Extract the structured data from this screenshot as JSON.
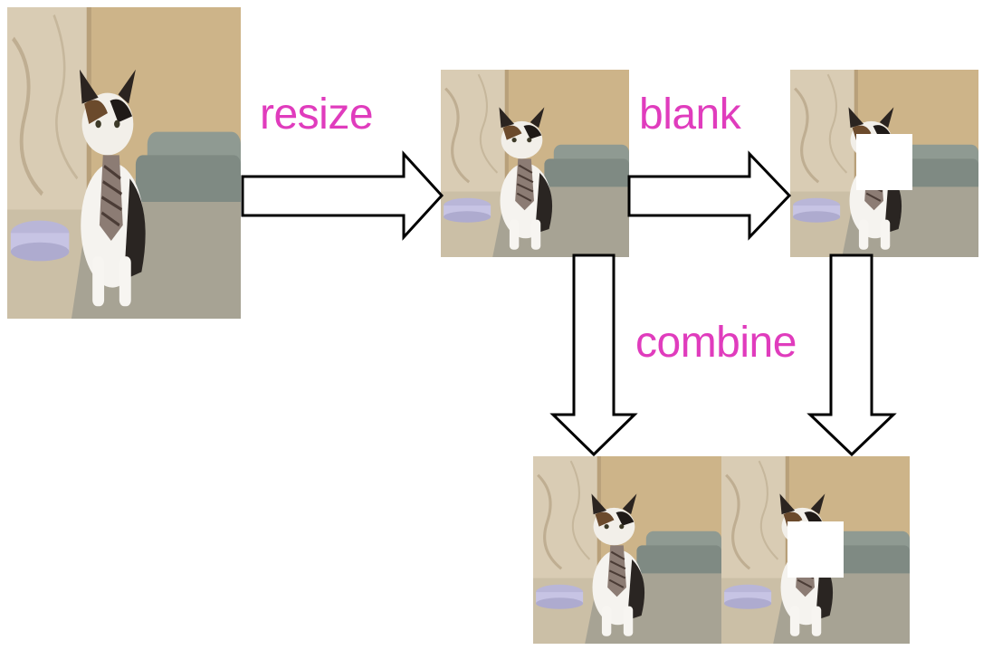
{
  "steps": {
    "resize": "resize",
    "blank": "blank",
    "combine": "combine"
  },
  "colors": {
    "label": "#e03cbd",
    "arrow_stroke": "#000000",
    "arrow_fill": "#ffffff",
    "blank_patch": "#ffffff"
  },
  "images": [
    {
      "role": "original",
      "content": "cat-photo"
    },
    {
      "role": "resized",
      "content": "cat-photo"
    },
    {
      "role": "blanked",
      "content": "cat-photo-with-blank-patch"
    },
    {
      "role": "combined-left",
      "content": "cat-photo"
    },
    {
      "role": "combined-right",
      "content": "cat-photo-with-blank-patch"
    }
  ]
}
